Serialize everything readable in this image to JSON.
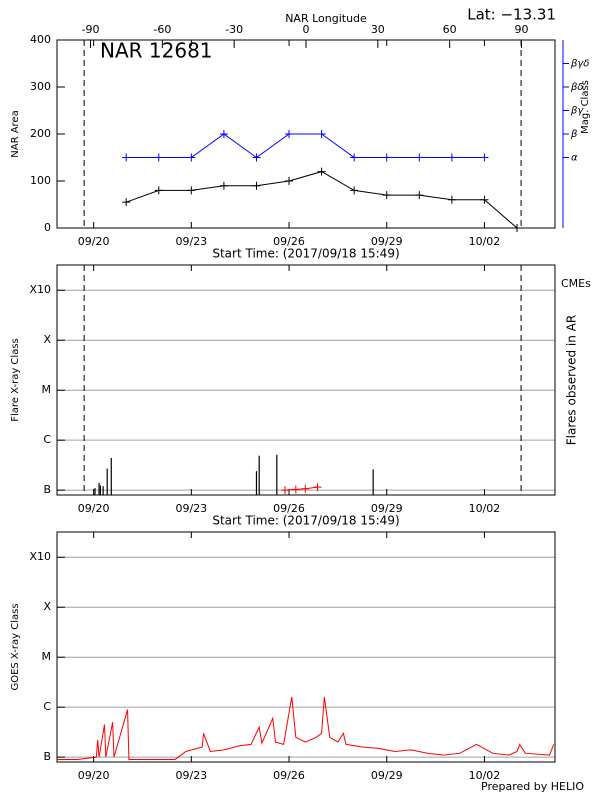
{
  "chart_data": [
    {
      "type": "line",
      "title": "NAR 12681",
      "annotation": "Lat: −13.31",
      "x2label": "NAR Longitude",
      "xlabel": "Start Time: (2017/09/18 15:49)",
      "ylabel": "NAR Area",
      "y2label": "Mag. Class",
      "x": [
        "2017-09-21T00:00",
        "2017-09-22T00:00",
        "2017-09-23T00:00",
        "2017-09-24T00:00",
        "2017-09-25T00:00",
        "2017-09-26T00:00",
        "2017-09-27T00:00",
        "2017-09-28T00:00",
        "2017-09-29T00:00",
        "2017-09-30T00:00",
        "2017-10-01T00:00",
        "2017-10-02T00:00",
        "2017-10-03T00:00"
      ],
      "series": [
        {
          "color": "#000000",
          "values": [
            55,
            80,
            80,
            90,
            90,
            100,
            120,
            80,
            70,
            70,
            60,
            60,
            0
          ]
        },
        {
          "color": "#0000ff",
          "axis": "y2",
          "values": [
            150,
            150,
            150,
            200,
            150,
            200,
            200,
            150,
            150,
            150,
            150,
            150,
            null
          ]
        }
      ],
      "xlim": [
        "2017-09-18T21:00",
        "2017-10-04T04:00"
      ],
      "xticks": [
        {
          "value": "2017-09-20T00:00",
          "label": "09/20"
        },
        {
          "value": "2017-09-23T00:00",
          "label": "09/23"
        },
        {
          "value": "2017-09-26T00:00",
          "label": "09/26"
        },
        {
          "value": "2017-09-29T00:00",
          "label": "09/29"
        },
        {
          "value": "2017-10-02T00:00",
          "label": "10/02"
        }
      ],
      "x2lim": [
        -104,
        104
      ],
      "x2ticks": [
        -90,
        -60,
        -30,
        0,
        30,
        60,
        90
      ],
      "ylim": [
        0,
        400
      ],
      "yticks": [
        0,
        100,
        200,
        300,
        400
      ],
      "y2lim": [
        0,
        400
      ],
      "y2ticks": [
        {
          "value": 150,
          "label": "α"
        },
        {
          "value": 200,
          "label": "β"
        },
        {
          "value": 250,
          "label": "βγ"
        },
        {
          "value": 300,
          "label": "βδ"
        },
        {
          "value": 350,
          "label": "βγδ"
        }
      ],
      "y2color": "#0000ff",
      "limb_lines": [
        "2017-09-19T17:00",
        "2017-10-03T03:00"
      ],
      "grid": false
    },
    {
      "type": "flares",
      "xlabel": "Start Time: (2017/09/18 15:49)",
      "ylabel": "Flare X-ray Class",
      "y2label": "Flares observed in AR",
      "x": [
        "2017-09-20T01:00",
        "2017-09-20T04:00",
        "2017-09-20T05:00",
        "2017-09-20T07:00",
        "2017-09-20T10:00",
        "2017-09-20T13:00",
        "2017-09-25T00:00",
        "2017-09-25T02:00",
        "2017-09-25T15:00",
        "2017-09-28T14:00"
      ],
      "values": [
        1.1e-07,
        1.4e-07,
        1.25e-07,
        1.2e-07,
        2.7e-07,
        4.4e-07,
        2.4e-07,
        4.9e-07,
        5.1e-07,
        2.6e-07
      ],
      "color": "#000000",
      "cmes": {
        "name": "CMEs",
        "color": "#ff0000",
        "x": [
          "2017-09-25T21:00",
          "2017-09-26T05:00",
          "2017-09-26T12:00",
          "2017-09-26T21:00"
        ],
        "values": [
          1e-07,
          1.03e-07,
          1.07e-07,
          1.15e-07
        ]
      },
      "xlim": [
        "2017-09-18T21:00",
        "2017-10-04T04:00"
      ],
      "xticks": [
        {
          "value": "2017-09-20T00:00",
          "label": "09/20"
        },
        {
          "value": "2017-09-23T00:00",
          "label": "09/23"
        },
        {
          "value": "2017-09-26T00:00",
          "label": "09/26"
        },
        {
          "value": "2017-09-29T00:00",
          "label": "09/29"
        },
        {
          "value": "2017-10-02T00:00",
          "label": "10/02"
        }
      ],
      "ylog": true,
      "ylim": [
        8e-08,
        0.0032
      ],
      "yticks": [
        {
          "value": 1e-07,
          "label": "B"
        },
        {
          "value": 1e-06,
          "label": "C"
        },
        {
          "value": 1e-05,
          "label": "M"
        },
        {
          "value": 0.0001,
          "label": "X"
        },
        {
          "value": 0.001,
          "label": "X10"
        }
      ],
      "limb_lines": [
        "2017-09-19T17:00",
        "2017-10-03T03:00"
      ],
      "grid": true
    },
    {
      "type": "line",
      "ylabel": "GOES X-ray Class",
      "footer": "Prepared by HELIO",
      "x": [
        "2017-09-18T21:00",
        "2017-09-19T12:00",
        "2017-09-20T02:00",
        "2017-09-20T03:00",
        "2017-09-20T04:00",
        "2017-09-20T08:00",
        "2017-09-20T09:00",
        "2017-09-20T14:00",
        "2017-09-20T15:00",
        "2017-09-21T01:00",
        "2017-09-21T02:00",
        "2017-09-22T12:00",
        "2017-09-22T20:00",
        "2017-09-23T08:00",
        "2017-09-23T09:00",
        "2017-09-23T14:00",
        "2017-09-24T00:00",
        "2017-09-24T12:00",
        "2017-09-24T20:00",
        "2017-09-25T02:00",
        "2017-09-25T04:00",
        "2017-09-25T12:00",
        "2017-09-25T14:00",
        "2017-09-25T20:00",
        "2017-09-26T02:00",
        "2017-09-26T05:00",
        "2017-09-26T12:00",
        "2017-09-26T20:00",
        "2017-09-27T00:00",
        "2017-09-27T02:00",
        "2017-09-27T06:00",
        "2017-09-27T12:00",
        "2017-09-27T16:00",
        "2017-09-27T18:00",
        "2017-09-28T06:00",
        "2017-09-28T18:00",
        "2017-09-29T06:00",
        "2017-09-29T18:00",
        "2017-09-30T06:00",
        "2017-09-30T18:00",
        "2017-10-01T06:00",
        "2017-10-01T18:00",
        "2017-10-01T20:00",
        "2017-10-02T06:00",
        "2017-10-02T18:00",
        "2017-10-03T00:00",
        "2017-10-03T02:00",
        "2017-10-03T06:00",
        "2017-10-04T00:00",
        "2017-10-04T03:00"
      ],
      "values": [
        9e-08,
        9e-08,
        1e-07,
        2.2e-07,
        1e-07,
        4.5e-07,
        1e-07,
        5e-07,
        1e-07,
        9e-07,
        9e-08,
        9e-08,
        1.3e-07,
        1.6e-07,
        3e-07,
        1.3e-07,
        1.4e-07,
        1.7e-07,
        1.8e-07,
        4e-07,
        1.9e-07,
        6e-07,
        2e-07,
        1.8e-07,
        1.6e-06,
        2.5e-07,
        2e-07,
        2.5e-07,
        3e-07,
        1.6e-06,
        2.5e-07,
        2e-07,
        3e-07,
        1.8e-07,
        1.6e-07,
        1.5e-07,
        1.3e-07,
        1.4e-07,
        1.2e-07,
        1.1e-07,
        1.2e-07,
        1.8e-07,
        1.7e-07,
        1.2e-07,
        1.1e-07,
        1.3e-07,
        1.8e-07,
        1.2e-07,
        1.1e-07,
        1.8e-07
      ],
      "color": "#ff0000",
      "xlim": [
        "2017-09-18T21:00",
        "2017-10-04T04:00"
      ],
      "xticks": [
        {
          "value": "2017-09-20T00:00",
          "label": "09/20"
        },
        {
          "value": "2017-09-23T00:00",
          "label": "09/23"
        },
        {
          "value": "2017-09-26T00:00",
          "label": "09/26"
        },
        {
          "value": "2017-09-29T00:00",
          "label": "09/29"
        },
        {
          "value": "2017-10-02T00:00",
          "label": "10/02"
        }
      ],
      "ylog": true,
      "ylim": [
        8e-08,
        0.0032
      ],
      "yticks": [
        {
          "value": 1e-07,
          "label": "B"
        },
        {
          "value": 1e-06,
          "label": "C"
        },
        {
          "value": 1e-05,
          "label": "M"
        },
        {
          "value": 0.0001,
          "label": "X"
        },
        {
          "value": 0.001,
          "label": "X10"
        }
      ],
      "grid": true
    }
  ]
}
